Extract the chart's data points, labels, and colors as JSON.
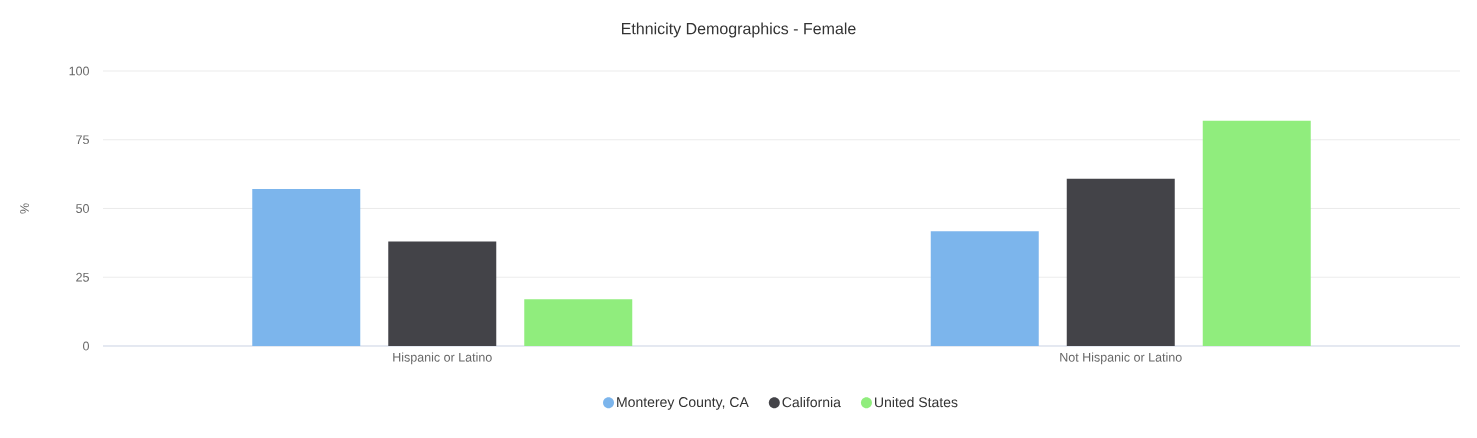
{
  "chart_data": {
    "type": "bar",
    "title": "Ethnicity Demographics - Female",
    "ylabel": "%",
    "categories": [
      "Hispanic or Latino",
      "Not Hispanic or Latino"
    ],
    "series": [
      {
        "name": "Monterey County, CA",
        "color": "#7cb5ec",
        "values": [
          57.1,
          41.7
        ]
      },
      {
        "name": "California",
        "color": "#434348",
        "values": [
          38.0,
          60.8
        ]
      },
      {
        "name": "United States",
        "color": "#90ed7d",
        "values": [
          17.0,
          81.9
        ]
      }
    ],
    "ylim": [
      0,
      100
    ],
    "yticks": [
      0,
      25,
      50,
      75,
      100
    ],
    "grid": "y",
    "legend": "bottom"
  }
}
